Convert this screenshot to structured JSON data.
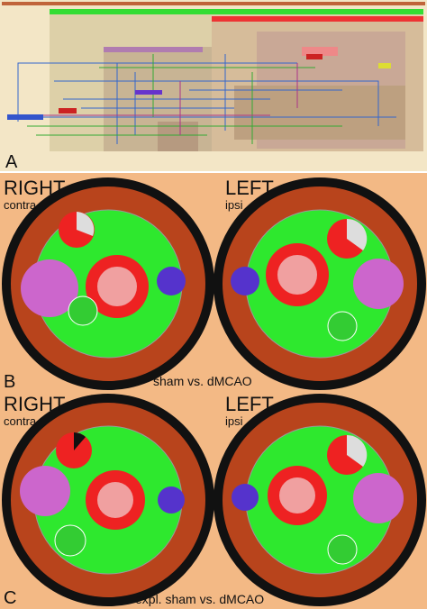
{
  "panels": [
    {
      "label": "A"
    },
    {
      "label": "B",
      "right_title": "RIGHT",
      "right_sub": "contra",
      "left_title": "LEFT",
      "left_sub": "ipsi",
      "caption": "sham vs. dMCAO"
    },
    {
      "label": "C",
      "right_title": "RIGHT",
      "right_sub": "contra",
      "left_title": "LEFT",
      "left_sub": "ipsi",
      "caption": "expl. sham vs. dMCAO"
    }
  ]
}
